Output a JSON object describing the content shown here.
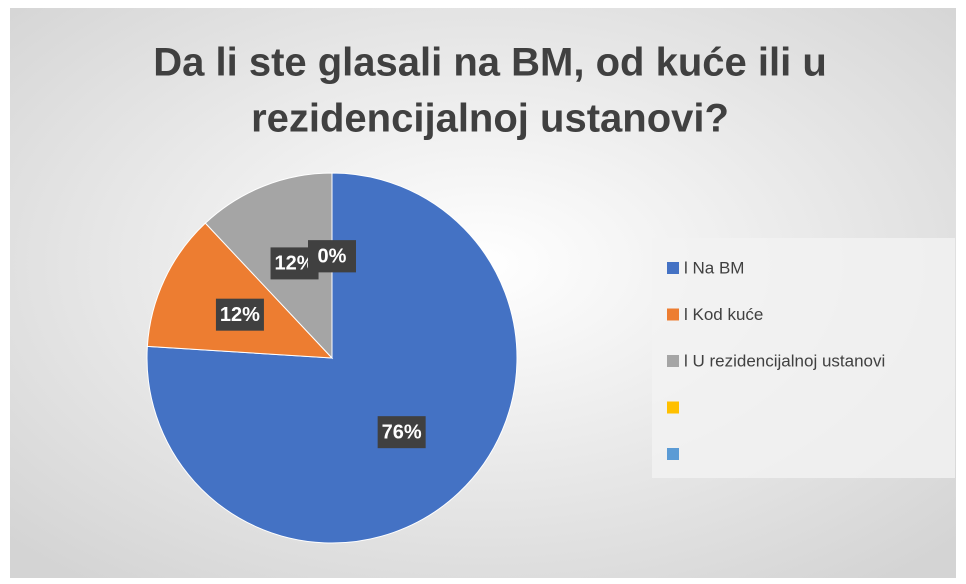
{
  "chart_data": {
    "type": "pie",
    "title": [
      "Da li ste glasali na BM, od kuće ili u",
      "rezidencijalnoj ustanovi?"
    ],
    "categories": [
      "l Na BM",
      "l Kod kuće",
      "l U rezidencijalnoj ustanovi",
      null,
      null
    ],
    "values": [
      76,
      12,
      12,
      0,
      0
    ],
    "value_labels": [
      "76%",
      "12%",
      "12%",
      "0%",
      "0%"
    ],
    "colors": [
      "#4472c4",
      "#ed7d31",
      "#a5a5a5",
      "#ffc000",
      "#5b9bd5"
    ],
    "legend": "right"
  }
}
